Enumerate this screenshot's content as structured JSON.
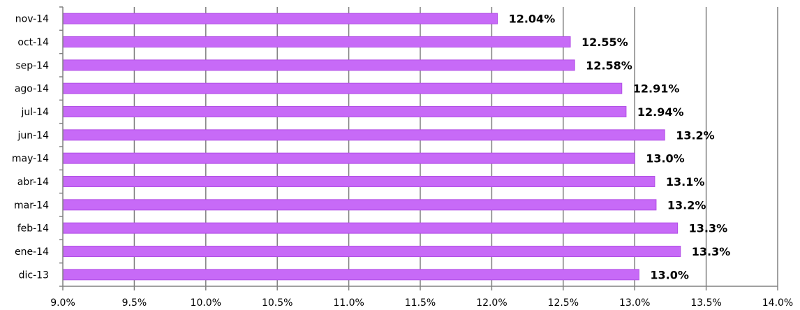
{
  "chart_data": {
    "type": "bar",
    "orientation": "horizontal",
    "categories": [
      "nov-14",
      "oct-14",
      "sep-14",
      "ago-14",
      "jul-14",
      "jun-14",
      "may-14",
      "abr-14",
      "mar-14",
      "feb-14",
      "ene-14",
      "dic-13"
    ],
    "values": [
      12.04,
      12.55,
      12.58,
      12.91,
      12.94,
      13.21,
      13.0,
      13.14,
      13.15,
      13.3,
      13.32,
      13.03
    ],
    "data_labels": [
      "12.04%",
      "12.55%",
      "12.58%",
      "12.91%",
      "12.94%",
      "13.2%",
      "13.0%",
      "13.1%",
      "13.2%",
      "13.3%",
      "13.3%",
      "13.0%"
    ],
    "x_ticks": [
      "9.0%",
      "9.5%",
      "10.0%",
      "10.5%",
      "11.0%",
      "11.5%",
      "12.0%",
      "12.5%",
      "13.0%",
      "13.5%",
      "14.0%"
    ],
    "xlim": [
      9.0,
      14.0
    ],
    "title": "",
    "xlabel": "",
    "ylabel": "",
    "grid": "vertical",
    "legend": "none",
    "colors": {
      "bar": "#c76af7",
      "bar_edge": "#b24fe6",
      "grid": "#808080",
      "axis": "#808080"
    }
  }
}
